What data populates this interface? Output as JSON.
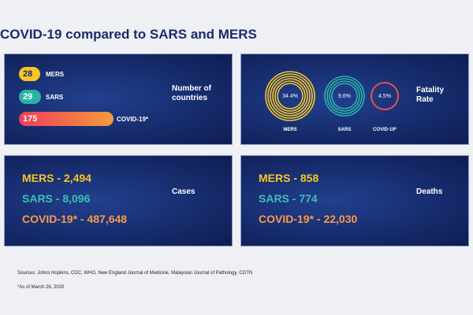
{
  "header": {
    "title": "COVID-19 compared to SARS and MERS"
  },
  "countries": {
    "label": "Number of countries",
    "items": [
      {
        "name": "MERS",
        "value": 28
      },
      {
        "name": "SARS",
        "value": 29
      },
      {
        "name": "COVID-19*",
        "value": 175
      }
    ]
  },
  "fatality": {
    "label": "Fatality Rate",
    "items": [
      {
        "name": "MERS",
        "rate": "34.4%"
      },
      {
        "name": "SARS",
        "rate": "9.6%"
      },
      {
        "name": "COVID-19*",
        "rate": "4.5%"
      }
    ]
  },
  "cases": {
    "label": "Cases",
    "items": [
      "MERS - 2,494",
      "SARS - 8,096",
      "COVID-19* - 487,648"
    ]
  },
  "deaths": {
    "label": "Deaths",
    "items": [
      "MERS - 858",
      "SARS - 774",
      "COVID-19* - 22,030"
    ]
  },
  "footer": {
    "sources": "Sources: Johns Hopkins, CDC, WHO, New England Journal of Medicine, Malaysian Journal of Pathology, CGTN",
    "note": "*As of March 26, 2020"
  }
}
